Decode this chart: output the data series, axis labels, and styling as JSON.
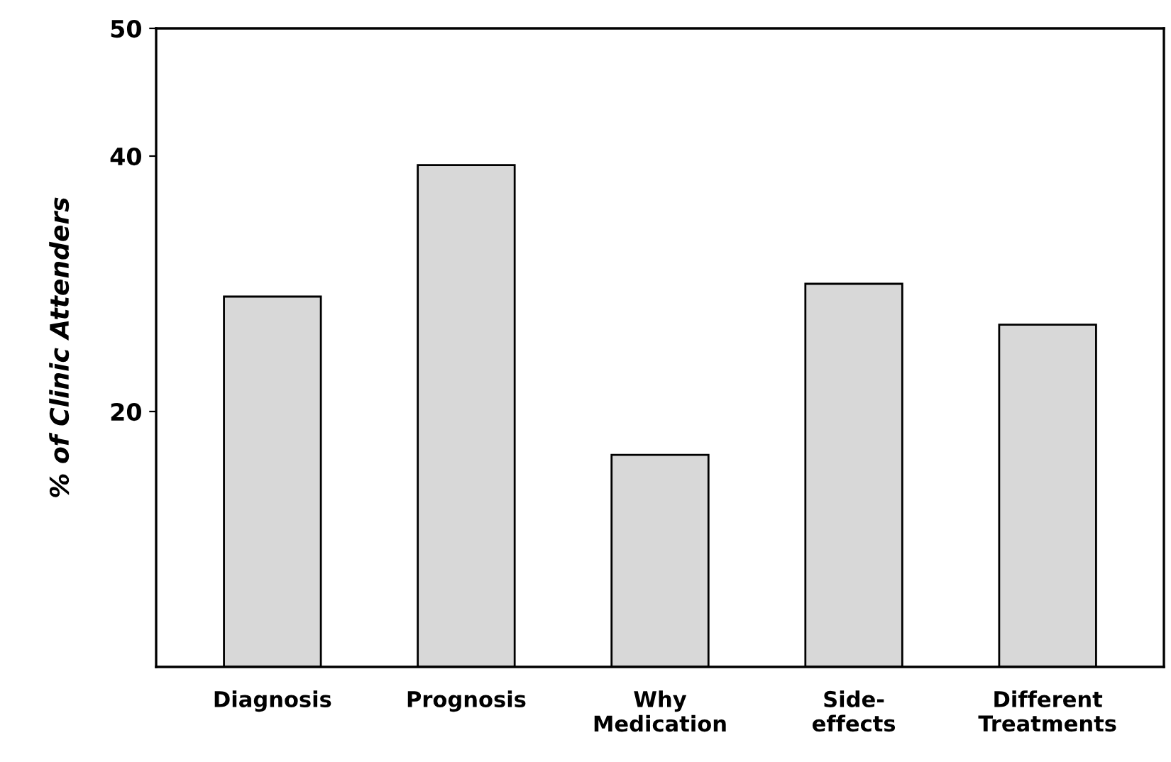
{
  "chart_data": {
    "type": "bar",
    "ylabel": "% of Clinic Attenders",
    "categories": [
      "Diagnosis",
      "Prognosis",
      "Why\nMedication",
      "Side-\neffects",
      "Different\nTreatments"
    ],
    "values": [
      29,
      39.3,
      16.6,
      30,
      26.8
    ],
    "color": "#d8d8d8",
    "ylim": [
      0,
      50
    ],
    "yticks": [
      20,
      40,
      50
    ],
    "grid": false
  }
}
